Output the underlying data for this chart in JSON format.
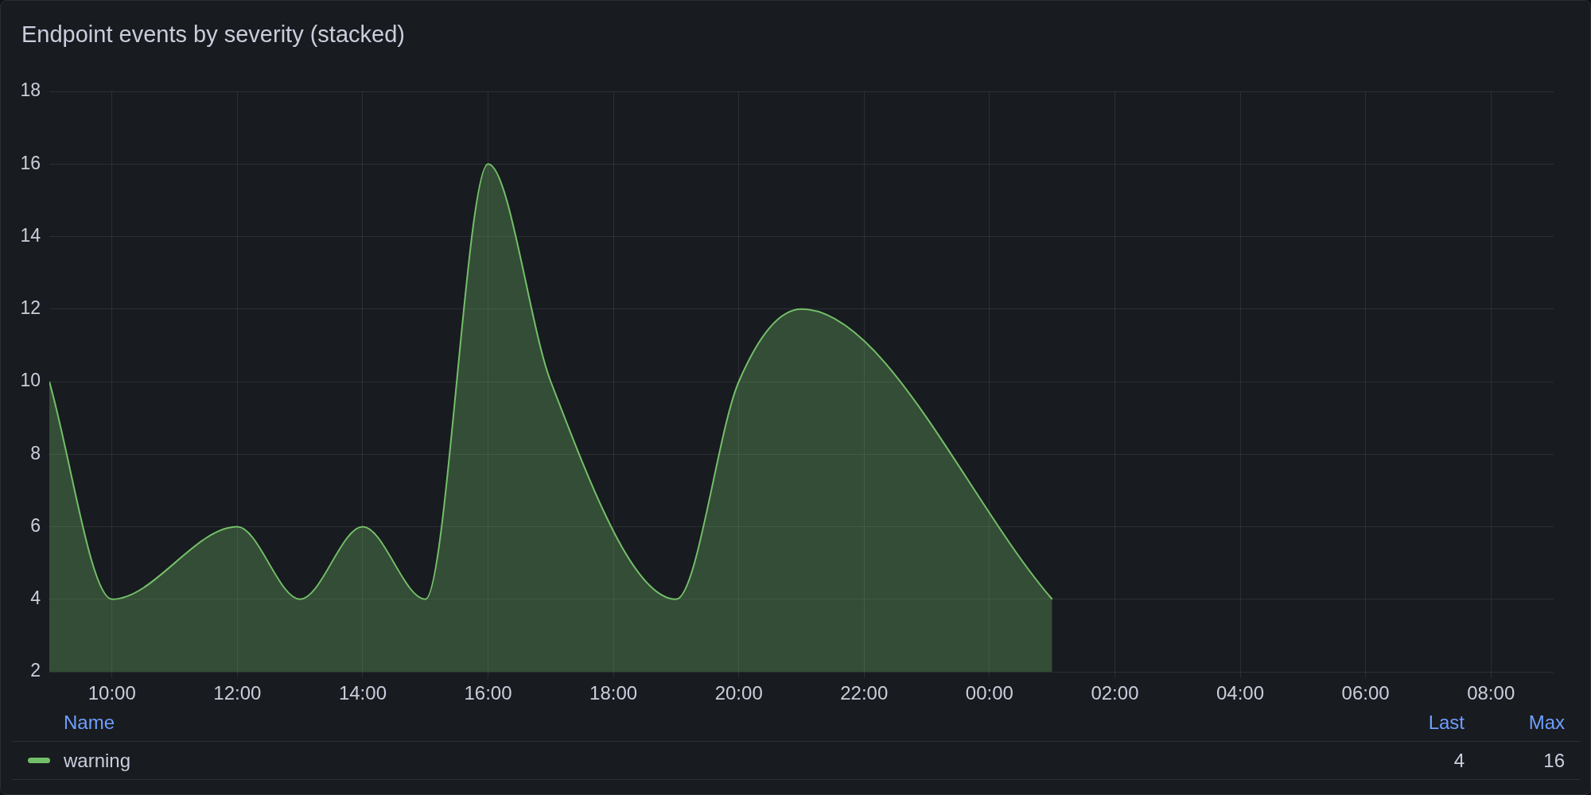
{
  "chart_data": {
    "type": "area",
    "title": "Endpoint events by severity (stacked)",
    "x": [
      "--01-01T09:00",
      "--01-01T10:00",
      "--01-01T12:00",
      "--01-01T13:00",
      "--01-01T14:00",
      "--01-01T15:00",
      "--01-01T16:00",
      "--01-01T17:00",
      "--01-01T19:00",
      "--01-01T20:00",
      "--01-01T21:00",
      "--01-02T01:00"
    ],
    "series": [
      {
        "name": "warning",
        "color": "#73bf69",
        "values": [
          10,
          4,
          6,
          4,
          6,
          4,
          16,
          10,
          4,
          10,
          12,
          4
        ]
      }
    ],
    "xlim": [
      "--01-01T09:00",
      "--01-02T09:00"
    ],
    "xticks": [
      {
        "value": "--01-01T10:00",
        "label": "10:00"
      },
      {
        "value": "--01-01T12:00",
        "label": "12:00"
      },
      {
        "value": "--01-01T14:00",
        "label": "14:00"
      },
      {
        "value": "--01-01T16:00",
        "label": "16:00"
      },
      {
        "value": "--01-01T18:00",
        "label": "18:00"
      },
      {
        "value": "--01-01T20:00",
        "label": "20:00"
      },
      {
        "value": "--01-01T22:00",
        "label": "22:00"
      },
      {
        "value": "--01-02T00:00",
        "label": "00:00"
      },
      {
        "value": "--01-02T02:00",
        "label": "02:00"
      },
      {
        "value": "--01-02T04:00",
        "label": "04:00"
      },
      {
        "value": "--01-02T06:00",
        "label": "06:00"
      },
      {
        "value": "--01-02T08:00",
        "label": "08:00"
      }
    ],
    "ylim": [
      2,
      18
    ],
    "yticks": [
      2,
      4,
      6,
      8,
      10,
      12,
      14,
      16,
      18
    ],
    "grid": true,
    "legend": "bottom",
    "legend_title": "Name",
    "marker": "none",
    "annotations": [
      "Last",
      "Max",
      "4",
      "16"
    ]
  }
}
